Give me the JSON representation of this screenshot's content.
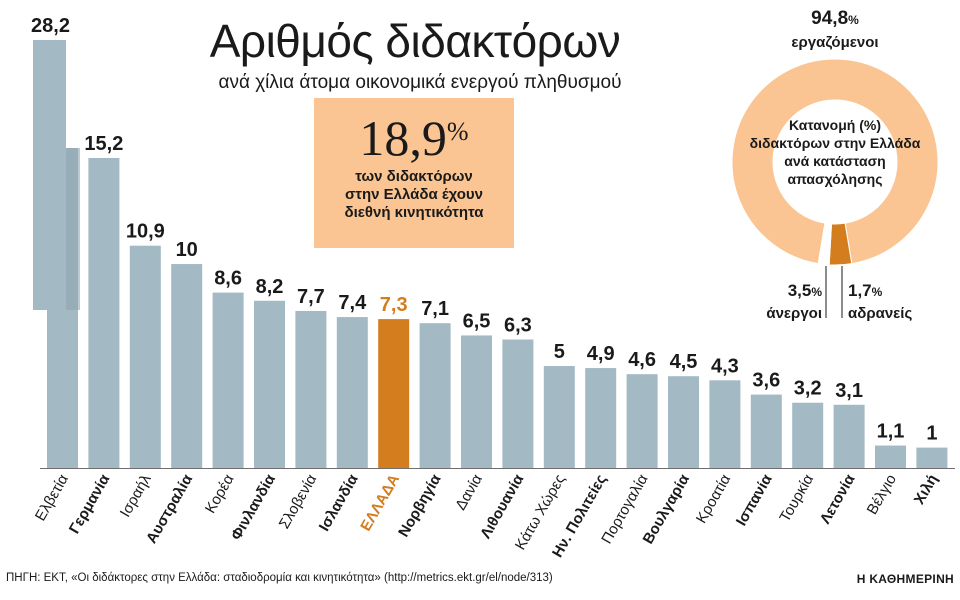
{
  "chart_data": {
    "type": "bar",
    "title": "Αριθμός διδακτόρων",
    "subtitle": "ανά χίλια άτομα οικονομικά ενεργού πληθυσμού",
    "ylim": [
      0,
      30
    ],
    "highlight_color": "#d47d1e",
    "bar_color": "#a3b9c3",
    "categories": [
      "Ελβετία",
      "Γερμανία",
      "Ισραήλ",
      "Αυστραλία",
      "Κορέα",
      "Φινλανδία",
      "Σλοβενία",
      "Ισλανδία",
      "ΕΛΛΑΔΑ",
      "Νορβηγία",
      "Δανία",
      "Λιθουανία",
      "Κάτω Χώρες",
      "Ην. Πολιτείες",
      "Πορτογαλία",
      "Βουλγαρία",
      "Κροατία",
      "Ισπανία",
      "Τουρκία",
      "Λετονία",
      "Βέλγιο",
      "Χιλή"
    ],
    "values": [
      28.2,
      15.2,
      10.9,
      10,
      8.6,
      8.2,
      7.7,
      7.4,
      7.3,
      7.1,
      6.5,
      6.3,
      5,
      4.9,
      4.6,
      4.5,
      4.3,
      3.6,
      3.2,
      3.1,
      1.1,
      1
    ],
    "value_labels": [
      "28,2",
      "15,2",
      "10,9",
      "10",
      "8,6",
      "8,2",
      "7,7",
      "7,4",
      "7,3",
      "7,1",
      "6,5",
      "6,3",
      "5",
      "4,9",
      "4,6",
      "4,5",
      "4,3",
      "3,6",
      "3,2",
      "3,1",
      "1,1",
      "1"
    ],
    "bold_categories": [
      false,
      true,
      false,
      true,
      false,
      true,
      false,
      true,
      true,
      true,
      false,
      true,
      false,
      true,
      false,
      true,
      false,
      true,
      false,
      true,
      false,
      true
    ],
    "highlight_index": 8
  },
  "callout": {
    "value": "18,9",
    "unit": "%",
    "text": [
      "των διδακτόρων",
      "στην Ελλάδα έχουν",
      "διεθνή κινητικότητα"
    ]
  },
  "donut": {
    "title": [
      "Κατανομή (%)",
      "διδακτόρων στην Ελλάδα",
      "ανά κατάσταση",
      "απασχόλησης"
    ],
    "slices": [
      {
        "label": "εργαζόμενοι",
        "value": 94.8,
        "display": "94,8",
        "color": "#fac593"
      },
      {
        "label": "άνεργοι",
        "value": 3.5,
        "display": "3,5",
        "color": "#d47d1e"
      },
      {
        "label": "αδρανείς",
        "value": 1.7,
        "display": "1,7",
        "color": "#ffffff"
      }
    ],
    "unit": "%"
  },
  "source": "ΠΗΓΗ: ΕΚΤ, «Οι διδάκτορες στην Ελλάδα: σταδιοδρομία και κινητικότητα» (http://metrics.ekt.gr/el/node/313)",
  "brand": "Η ΚΑΘΗΜΕΡΙΝΗ"
}
